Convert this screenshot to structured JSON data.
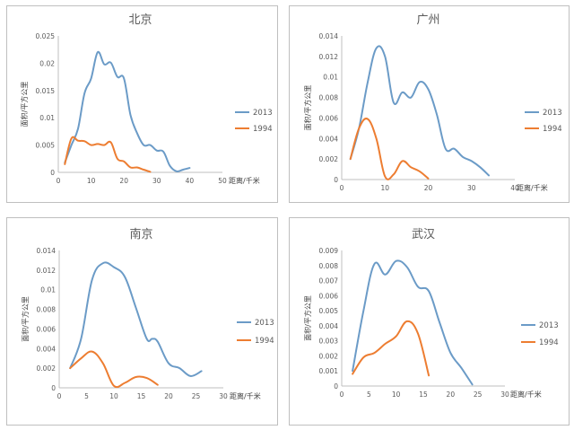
{
  "chart_data": [
    {
      "type": "line",
      "title": "北京",
      "ylabel": "面积/平方公里",
      "xlabel": "距离/千米",
      "xlim": [
        0,
        50
      ],
      "ylim": [
        0,
        0.025
      ],
      "xticks": [
        0,
        10,
        20,
        30,
        40,
        50
      ],
      "yticks": [
        0,
        0.005,
        0.01,
        0.015,
        0.02,
        0.025
      ],
      "ytick_labels": [
        "0",
        "0.005",
        "0.01",
        "0.015",
        "0.02",
        "0.025"
      ],
      "series": [
        {
          "name": "2013",
          "color": "#6b9bc7",
          "x": [
            2,
            4,
            6,
            8,
            10,
            12,
            14,
            16,
            18,
            20,
            22,
            24,
            26,
            28,
            30,
            32,
            34,
            36,
            38,
            40
          ],
          "y": [
            0.0018,
            0.005,
            0.008,
            0.0145,
            0.0172,
            0.022,
            0.0198,
            0.0201,
            0.0175,
            0.0172,
            0.0105,
            0.0072,
            0.005,
            0.005,
            0.004,
            0.0038,
            0.0012,
            0.0002,
            0.0005,
            0.0008
          ]
        },
        {
          "name": "1994",
          "color": "#ed7d31",
          "x": [
            2,
            4,
            6,
            8,
            10,
            12,
            14,
            16,
            18,
            20,
            22,
            24,
            26,
            28
          ],
          "y": [
            0.0015,
            0.0062,
            0.0058,
            0.0057,
            0.005,
            0.0052,
            0.005,
            0.0055,
            0.0025,
            0.002,
            0.0009,
            0.0009,
            0.0005,
            0.0001
          ]
        }
      ],
      "legend": "right"
    },
    {
      "type": "line",
      "title": "广州",
      "ylabel": "面积/平方公里",
      "xlabel": "距离/千米",
      "xlim": [
        0,
        40
      ],
      "ylim": [
        0,
        0.014
      ],
      "xticks": [
        0,
        10,
        20,
        30,
        40
      ],
      "yticks": [
        0,
        0.002,
        0.004,
        0.006,
        0.008,
        0.01,
        0.012,
        0.014
      ],
      "ytick_labels": [
        "0",
        "0.002",
        "0.004",
        "0.006",
        "0.008",
        "0.01",
        "0.012",
        "0.014"
      ],
      "series": [
        {
          "name": "2013",
          "color": "#6b9bc7",
          "x": [
            2,
            4,
            6,
            8,
            10,
            12,
            14,
            16,
            18,
            20,
            22,
            24,
            26,
            28,
            30,
            32,
            34
          ],
          "y": [
            0.002,
            0.005,
            0.0095,
            0.0128,
            0.012,
            0.0075,
            0.0085,
            0.008,
            0.0095,
            0.0088,
            0.0063,
            0.003,
            0.003,
            0.0022,
            0.0018,
            0.0012,
            0.0004
          ]
        },
        {
          "name": "1994",
          "color": "#ed7d31",
          "x": [
            2,
            4,
            6,
            8,
            10,
            12,
            14,
            16,
            18,
            20
          ],
          "y": [
            0.002,
            0.005,
            0.0059,
            0.004,
            0.0003,
            0.0005,
            0.0018,
            0.0012,
            0.0008,
            0.0001
          ]
        }
      ],
      "legend": "right"
    },
    {
      "type": "line",
      "title": "南京",
      "ylabel": "面积/平方公里",
      "xlabel": "距离/千米",
      "xlim": [
        0,
        30
      ],
      "ylim": [
        0,
        0.014
      ],
      "xticks": [
        0,
        5,
        10,
        15,
        20,
        25,
        30
      ],
      "yticks": [
        0,
        0.002,
        0.004,
        0.006,
        0.008,
        0.01,
        0.012,
        0.014
      ],
      "ytick_labels": [
        "0",
        "0.002",
        "0.004",
        "0.006",
        "0.008",
        "0.01",
        "0.012",
        "0.014"
      ],
      "series": [
        {
          "name": "2013",
          "color": "#6b9bc7",
          "x": [
            2,
            4,
            6,
            8,
            10,
            12,
            14,
            16,
            17,
            18,
            20,
            22,
            24,
            26
          ],
          "y": [
            0.002,
            0.005,
            0.011,
            0.0127,
            0.0123,
            0.0113,
            0.0082,
            0.005,
            0.005,
            0.0047,
            0.0025,
            0.002,
            0.0012,
            0.0017
          ]
        },
        {
          "name": "1994",
          "color": "#ed7d31",
          "x": [
            2,
            4,
            6,
            8,
            10,
            12,
            14,
            16,
            18
          ],
          "y": [
            0.002,
            0.003,
            0.0037,
            0.0025,
            0.0002,
            0.0005,
            0.0011,
            0.001,
            0.0003
          ]
        }
      ],
      "legend": "right"
    },
    {
      "type": "line",
      "title": "武汉",
      "ylabel": "面积/平方公里",
      "xlabel": "距离/千米",
      "xlim": [
        0,
        30
      ],
      "ylim": [
        0,
        0.009
      ],
      "xticks": [
        0,
        5,
        10,
        15,
        20,
        25,
        30
      ],
      "yticks": [
        0,
        0.001,
        0.002,
        0.003,
        0.004,
        0.005,
        0.006,
        0.007,
        0.008,
        0.009
      ],
      "ytick_labels": [
        "0",
        "0.001",
        "0.002",
        "0.003",
        "0.004",
        "0.005",
        "0.006",
        "0.007",
        "0.008",
        "0.009"
      ],
      "series": [
        {
          "name": "2013",
          "color": "#6b9bc7",
          "x": [
            2,
            4,
            6,
            8,
            10,
            12,
            14,
            16,
            18,
            20,
            22,
            24
          ],
          "y": [
            0.001,
            0.005,
            0.0081,
            0.0074,
            0.0083,
            0.0079,
            0.0066,
            0.0063,
            0.0042,
            0.0022,
            0.0012,
            0.0001
          ]
        },
        {
          "name": "1994",
          "color": "#ed7d31",
          "x": [
            2,
            4,
            6,
            8,
            10,
            12,
            14,
            16
          ],
          "y": [
            0.0008,
            0.0019,
            0.0022,
            0.0028,
            0.0033,
            0.0043,
            0.0035,
            0.0007
          ]
        }
      ],
      "legend": "right"
    }
  ]
}
